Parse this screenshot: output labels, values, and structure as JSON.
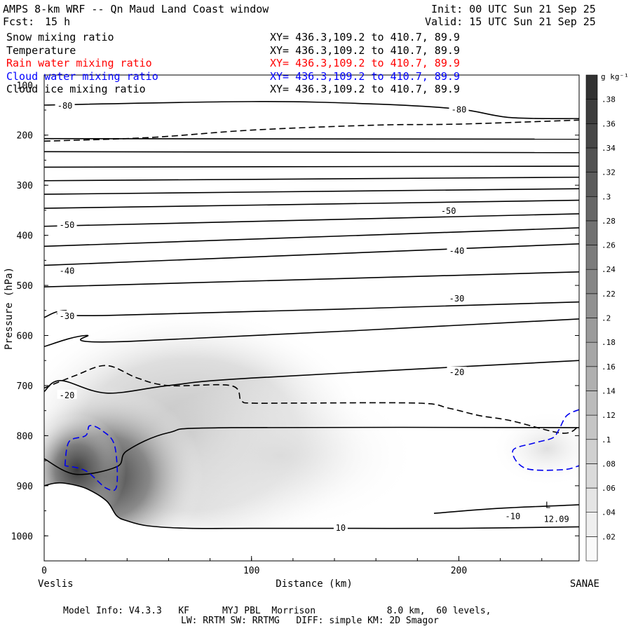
{
  "header": {
    "title": "AMPS 8-km WRF -- Qn Maud Land Coast window",
    "fcst_label": "Fcst:",
    "fcst_value": "15 h",
    "init": "Init: 00 UTC Sun 21 Sep 25",
    "valid": "Valid: 15 UTC Sun 21 Sep 25"
  },
  "legend": [
    {
      "name": "Snow mixing ratio",
      "xy": "XY= 436.3,109.2 to 410.7, 89.9",
      "color": "#000000"
    },
    {
      "name": "Temperature",
      "xy": "XY= 436.3,109.2 to 410.7, 89.9",
      "color": "#000000"
    },
    {
      "name": "Rain water mixing ratio",
      "xy": "XY= 436.3,109.2 to 410.7, 89.9",
      "color": "#ff0000"
    },
    {
      "name": "Cloud water mixing ratio",
      "xy": "XY= 436.3,109.2 to 410.7, 89.9",
      "color": "#0000ff"
    },
    {
      "name": "Cloud ice mixing ratio",
      "xy": "XY= 436.3,109.2 to 410.7, 89.9",
      "color": "#000000"
    }
  ],
  "footer": {
    "model_info": "Model Info: V4.3.3   KF      MYJ PBL  Morrison             8.0 km,  60 levels,",
    "physics": "LW: RRTM SW: RRTMG   DIFF: simple KM: 2D Smagor"
  },
  "chart_data": {
    "type": "cross-section",
    "xlabel": "Distance (km)",
    "ylabel": "Pressure (hPa)",
    "xlim": [
      0,
      258
    ],
    "ylim": [
      1050,
      80
    ],
    "x_ticks": [
      0,
      100,
      200
    ],
    "y_ticks": [
      200,
      300,
      400,
      500,
      600,
      700,
      800,
      900,
      1000
    ],
    "y_top_tick_label": "100",
    "left_endpoint": "Veslis",
    "right_endpoint": "SANAE",
    "colorbar": {
      "units": "g kg⁻¹",
      "levels": [
        "",
        ".02",
        ".04",
        ".06",
        ".08",
        ".1",
        ".12",
        ".14",
        ".16",
        ".18",
        ".2",
        ".22",
        ".24",
        ".26",
        ".28",
        ".3",
        ".32",
        ".34",
        ".36",
        ".38",
        ""
      ]
    },
    "temperature_labels": [
      {
        "text": "-80",
        "x": 10,
        "p": 140
      },
      {
        "text": "-80",
        "x": 200,
        "p": 148
      },
      {
        "text": "-50",
        "x": 11,
        "p": 378
      },
      {
        "text": "-50",
        "x": 195,
        "p": 350
      },
      {
        "text": "-40",
        "x": 11,
        "p": 470
      },
      {
        "text": "-40",
        "x": 199,
        "p": 430
      },
      {
        "text": "-30",
        "x": 11,
        "p": 560
      },
      {
        "text": "-30",
        "x": 199,
        "p": 525
      },
      {
        "text": "-20",
        "x": 11,
        "p": 718
      },
      {
        "text": "-20",
        "x": 199,
        "p": 672
      },
      {
        "text": "-10",
        "x": 226,
        "p": 960
      },
      {
        "text": "10",
        "x": 143,
        "p": 983
      }
    ],
    "low_marker": {
      "label": "L",
      "value": "12.09",
      "x": 243,
      "p": 958
    },
    "temperature_contours": [
      {
        "x": [
          0,
          100,
          160,
          200,
          225,
          258
        ],
        "p": [
          140,
          133,
          138,
          148,
          165,
          167
        ]
      },
      {
        "x": [
          0,
          258
        ],
        "p": [
          207,
          208
        ]
      },
      {
        "x": [
          0,
          258
        ],
        "p": [
          233,
          235
        ]
      },
      {
        "x": [
          0,
          258
        ],
        "p": [
          264,
          262
        ]
      },
      {
        "x": [
          0,
          258
        ],
        "p": [
          291,
          284
        ]
      },
      {
        "x": [
          0,
          258
        ],
        "p": [
          318,
          307
        ]
      },
      {
        "x": [
          0,
          258
        ],
        "p": [
          346,
          330
        ]
      },
      {
        "x": [
          0,
          258
        ],
        "p": [
          382,
          357
        ]
      },
      {
        "x": [
          0,
          258
        ],
        "p": [
          422,
          385
        ]
      },
      {
        "x": [
          0,
          258
        ],
        "p": [
          460,
          417
        ]
      },
      {
        "x": [
          0,
          258
        ],
        "p": [
          503,
          473
        ]
      },
      {
        "x": [
          0,
          10,
          30,
          258
        ],
        "p": [
          564,
          550,
          560,
          533
        ]
      },
      {
        "x": [
          0,
          20,
          40,
          258
        ],
        "p": [
          622,
          600,
          612,
          567
        ]
      },
      {
        "x": [
          0,
          8,
          30,
          60,
          100,
          258
        ],
        "p": [
          712,
          690,
          715,
          700,
          685,
          650
        ]
      },
      {
        "x": [
          0,
          15,
          35,
          40,
          60,
          90,
          258
        ],
        "p": [
          846,
          877,
          862,
          830,
          794,
          784,
          784
        ]
      },
      {
        "x": [
          188,
          220,
          258
        ],
        "p": [
          955,
          945,
          938
        ]
      }
    ],
    "surface": {
      "x": [
        0,
        5,
        10,
        20,
        30,
        35,
        40,
        50,
        70,
        100,
        150,
        200,
        258
      ],
      "p": [
        900,
        895,
        895,
        905,
        930,
        960,
        970,
        980,
        985,
        985,
        985,
        985,
        982
      ]
    },
    "dashed_contours": [
      {
        "x": [
          0,
          50,
          100,
          160,
          200,
          258
        ],
        "p": [
          212,
          205,
          190,
          180,
          178,
          170
        ]
      },
      {
        "x": [
          0,
          15,
          30,
          45,
          60,
          90,
          95,
          100,
          120,
          180,
          195,
          210,
          225,
          250,
          258
        ],
        "p": [
          705,
          680,
          660,
          685,
          700,
          700,
          730,
          735,
          735,
          735,
          745,
          760,
          770,
          795,
          780
        ]
      }
    ],
    "cloud_water_contours": [
      {
        "x": [
          10,
          12,
          20,
          22,
          28,
          34,
          35,
          30,
          20,
          10
        ],
        "p": [
          860,
          812,
          800,
          780,
          790,
          820,
          900,
          905,
          870,
          860
        ]
      },
      {
        "x": [
          258,
          252,
          248,
          245,
          236,
          226,
          232,
          250,
          258
        ],
        "p": [
          748,
          760,
          790,
          805,
          815,
          830,
          865,
          868,
          860
        ]
      }
    ]
  }
}
